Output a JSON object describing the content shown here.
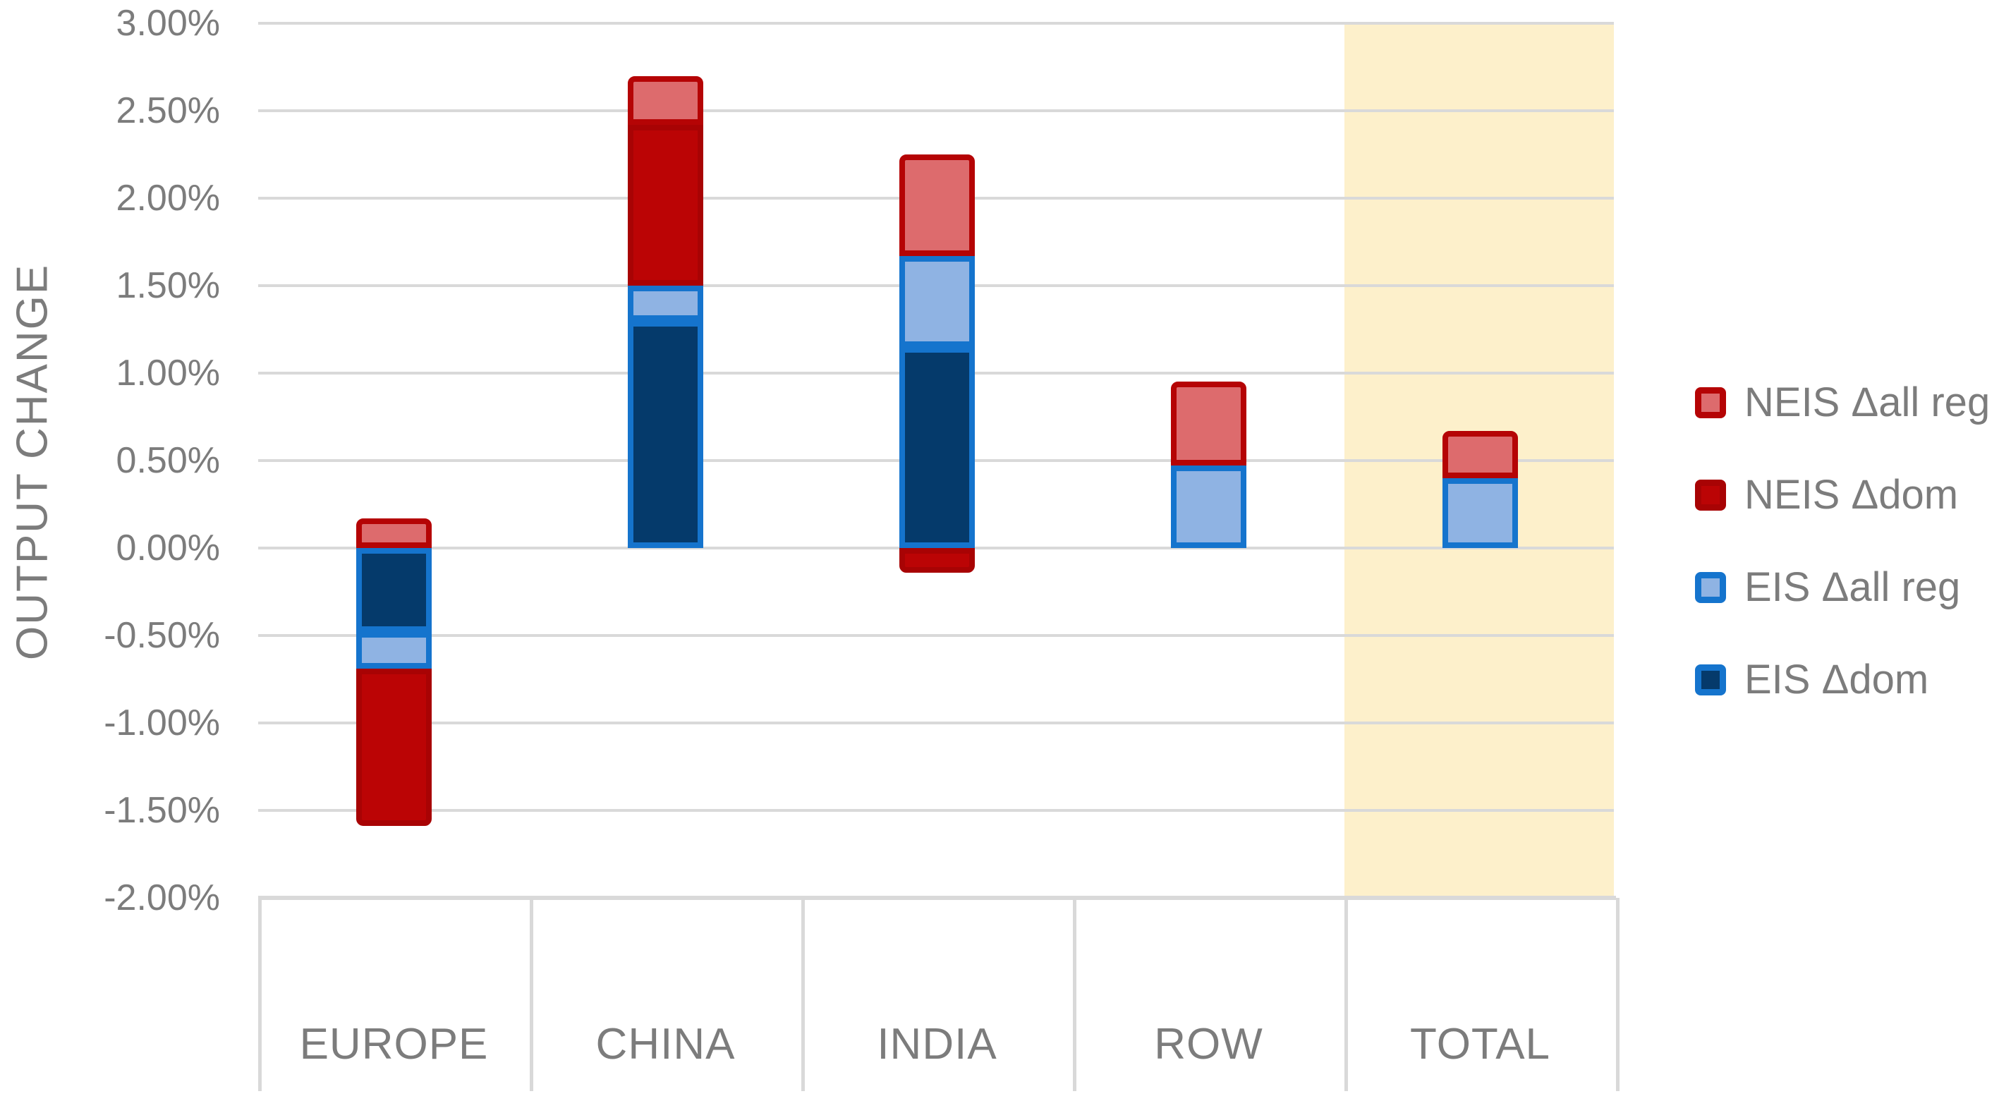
{
  "chart_data": {
    "type": "bar",
    "stacked": true,
    "title": "",
    "xlabel": "",
    "ylabel": "OUTPUT CHANGE",
    "categories": [
      "EUROPE",
      "CHINA",
      "INDIA",
      "ROW",
      "TOTAL"
    ],
    "highlighted_category": "TOTAL",
    "y_ticks": [
      "3.00%",
      "2.50%",
      "2.00%",
      "1.50%",
      "1.00%",
      "0.50%",
      "0.00%",
      "-0.50%",
      "-1.00%",
      "-1.50%",
      "-2.00%"
    ],
    "ylim": [
      -2.0,
      3.0
    ],
    "y_step_pct": 0.5,
    "grid": true,
    "legend_position": "right",
    "series": [
      {
        "name": "NEIS Δall reg",
        "fill": "#DD6B6D",
        "border": "#B50405",
        "values": [
          0.17,
          0.28,
          0.58,
          0.48,
          0.27
        ]
      },
      {
        "name": "NEIS Δdom",
        "fill": "#BB0405",
        "border": "#A80304",
        "values": [
          -0.9,
          0.92,
          -0.14,
          0.0,
          0.0
        ]
      },
      {
        "name": "EIS Δall reg",
        "fill": "#8FB3E3",
        "border": "#1574CD",
        "values": [
          -0.21,
          0.2,
          0.52,
          0.47,
          0.4
        ]
      },
      {
        "name": "EIS Δdom",
        "fill": "#053A6B",
        "border": "#1574CD",
        "values": [
          -0.48,
          1.3,
          1.15,
          0.0,
          0.0
        ]
      }
    ],
    "stack_order_bottom_to_top": [
      "EIS Δdom",
      "EIS Δall reg",
      "NEIS Δdom",
      "NEIS Δall reg"
    ]
  },
  "colors": {
    "background": "#FFFFFF",
    "gridline": "#D9D9D9",
    "axis_text": "#7C7C7C",
    "highlight_band": "#FDF0CB"
  }
}
